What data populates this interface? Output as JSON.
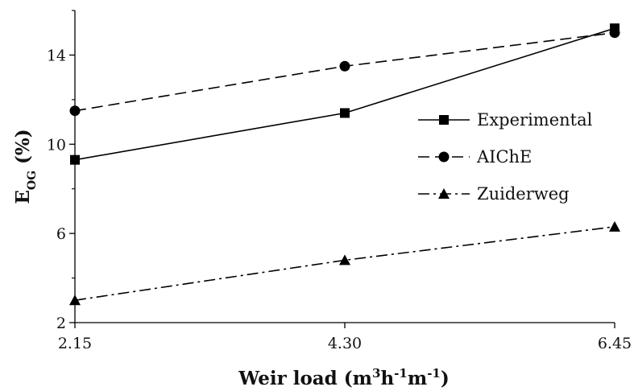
{
  "chart_data": {
    "type": "line",
    "x": [
      2.15,
      4.3,
      6.45
    ],
    "x_tick_labels": [
      "2.15",
      "4.30",
      "6.45"
    ],
    "xlim": [
      2.15,
      6.45
    ],
    "ylim": [
      2,
      16
    ],
    "y_ticks": [
      2,
      6,
      10,
      14
    ],
    "y_minor_ticks": [
      4,
      8,
      12,
      16
    ],
    "grid": false,
    "legend_position": "center-right",
    "xlabel": {
      "main": "Weir load (m",
      "sup1": "3",
      "mid1": "h",
      "sup2": "-1",
      "mid2": "m",
      "sup3": "-1",
      "end": ")"
    },
    "ylabel": {
      "main": "E",
      "sub": "OG",
      "rest": " (%)"
    },
    "series": [
      {
        "name": "Experimental",
        "values": [
          9.3,
          11.4,
          15.2
        ],
        "marker": "square",
        "dash": "solid",
        "color": "#000000"
      },
      {
        "name": "AIChE",
        "values": [
          11.5,
          13.5,
          15.0
        ],
        "marker": "circle",
        "dash": "dashed",
        "color": "#000000"
      },
      {
        "name": "Zuiderweg",
        "values": [
          3.0,
          4.8,
          6.3
        ],
        "marker": "triangle",
        "dash": "dashdot",
        "color": "#000000"
      }
    ]
  }
}
